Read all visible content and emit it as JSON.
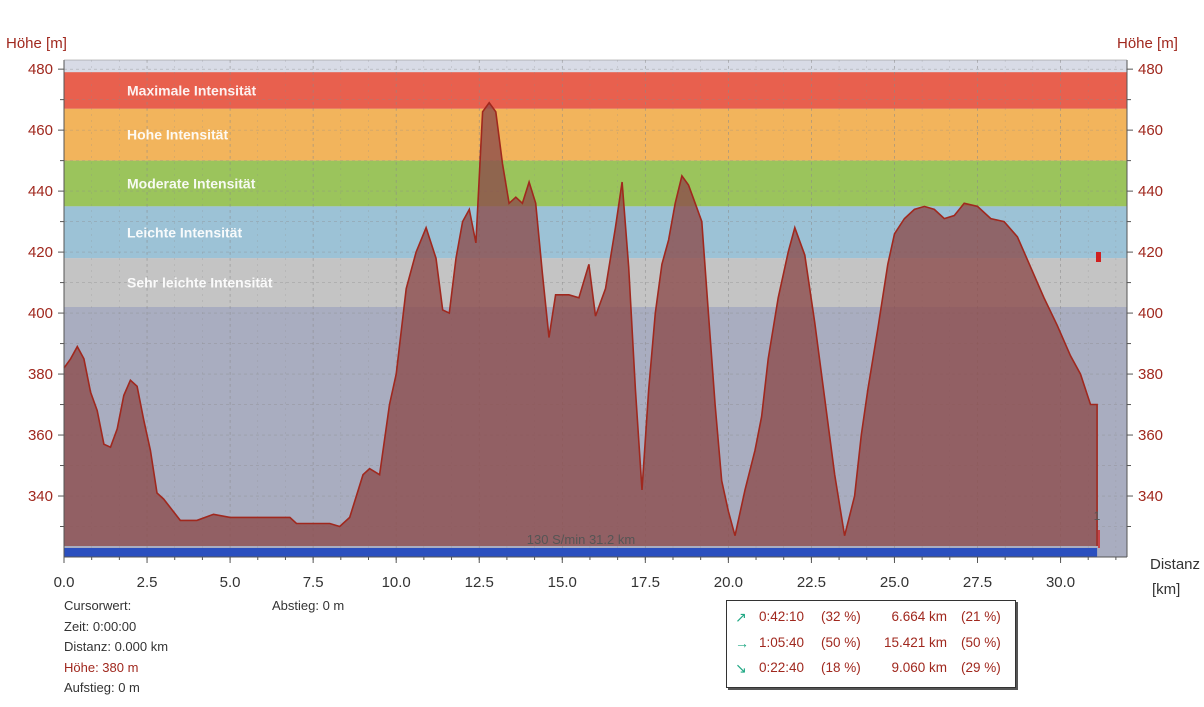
{
  "labels": {
    "y_left": "Höhe [m]",
    "y_right": "Höhe [m]",
    "x_title_line1": "Distanz",
    "x_title_line2": "[km]",
    "marker": "130 S/min 31.2 km",
    "marker_tick": "1"
  },
  "cursor": {
    "title": "Cursorwert:",
    "zeit": "Zeit: 0:00:00",
    "distanz": "Distanz: 0.000 km",
    "hoehe": "Höhe:  380 m",
    "aufstieg": "Aufstieg: 0 m",
    "abstieg": "Abstieg: 0 m"
  },
  "stats": [
    {
      "icon": "arrow-up-right-icon",
      "glyph": "↗",
      "time": "0:42:10",
      "pct": "(32 %)",
      "km": "6.664 km",
      "km_pct": "(21 %)"
    },
    {
      "icon": "arrow-right-icon",
      "glyph": "→",
      "time": "1:05:40",
      "pct": "(50 %)",
      "km": "15.421 km",
      "km_pct": "(50 %)"
    },
    {
      "icon": "arrow-down-right-icon",
      "glyph": "↘",
      "time": "0:22:40",
      "pct": "(18 %)",
      "km": "9.060 km",
      "km_pct": "(29 %)"
    }
  ],
  "colors": {
    "elevation_fill": "#8c4a4a",
    "elevation_line": "#a0281e",
    "bottom_bar": "#2a4fbf",
    "axis_text": "#a0281e"
  },
  "chart_data": {
    "type": "area",
    "xlabel": "Distanz [km]",
    "ylabel": "Höhe [m]",
    "xlim": [
      0,
      32
    ],
    "ylim": [
      320,
      483
    ],
    "x_ticks": [
      0.0,
      2.5,
      5.0,
      7.5,
      10.0,
      12.5,
      15.0,
      17.5,
      20.0,
      22.5,
      25.0,
      27.5,
      30.0
    ],
    "y_ticks": [
      340,
      360,
      380,
      400,
      420,
      440,
      460,
      480
    ],
    "grid": true,
    "zones": [
      {
        "name": "Maximale Intensität",
        "from": 467,
        "to": 479,
        "color": "#e8604e"
      },
      {
        "name": "Hohe Intensität",
        "from": 450,
        "to": 467,
        "color": "#f2b45c"
      },
      {
        "name": "Moderate Intensität",
        "from": 435,
        "to": 450,
        "color": "#9bc45c"
      },
      {
        "name": "Leichte Intensität",
        "from": 418,
        "to": 435,
        "color": "#9cc2d6"
      },
      {
        "name": "Sehr leichte Intensität",
        "from": 402,
        "to": 418,
        "color": "#c4c4c4"
      }
    ],
    "background_below_zones": "#a9adc0",
    "background_above_zones": "#d8dbe6",
    "series": [
      {
        "x": [
          0,
          0.2,
          0.4,
          0.6,
          0.8,
          1.0,
          1.2,
          1.4,
          1.6,
          1.8,
          2.0,
          2.2,
          2.4,
          2.6,
          2.8,
          3.0,
          3.5,
          4.0,
          4.5,
          5.0,
          5.5,
          6.0,
          6.5,
          6.8,
          7.0,
          7.5,
          8.0,
          8.3,
          8.6,
          9.0,
          9.2,
          9.5,
          9.8,
          10.0,
          10.3,
          10.6,
          10.9,
          11.2,
          11.4,
          11.6,
          11.8,
          12.0,
          12.2,
          12.4,
          12.6,
          12.8,
          13.0,
          13.2,
          13.4,
          13.6,
          13.8,
          14.0,
          14.2,
          14.4,
          14.6,
          14.8,
          15.0,
          15.2,
          15.5,
          15.8,
          16.0,
          16.3,
          16.6,
          16.8,
          17.0,
          17.2,
          17.4,
          17.6,
          17.8,
          18.0,
          18.2,
          18.4,
          18.6,
          18.8,
          19.0,
          19.2,
          19.4,
          19.6,
          19.8,
          20.0,
          20.2,
          20.5,
          20.8,
          21.0,
          21.2,
          21.5,
          21.8,
          22.0,
          22.3,
          22.6,
          22.9,
          23.2,
          23.5,
          23.8,
          24.0,
          24.2,
          24.5,
          24.8,
          25.0,
          25.3,
          25.6,
          25.9,
          26.2,
          26.5,
          26.8,
          27.1,
          27.5,
          27.9,
          28.3,
          28.7,
          29.1,
          29.5,
          29.9,
          30.3,
          30.6,
          30.9,
          31.1
        ],
        "y": [
          382,
          385,
          389,
          385,
          374,
          368,
          357,
          356,
          362,
          373,
          378,
          376,
          365,
          355,
          341,
          339,
          332,
          332,
          334,
          333,
          333,
          333,
          333,
          333,
          331,
          331,
          331,
          330,
          333,
          347,
          349,
          347,
          370,
          380,
          408,
          420,
          428,
          418,
          401,
          400,
          418,
          430,
          434,
          423,
          466,
          469,
          466,
          449,
          436,
          438,
          436,
          443,
          436,
          413,
          392,
          406,
          406,
          406,
          405,
          416,
          399,
          408,
          428,
          443,
          415,
          375,
          342,
          375,
          400,
          416,
          424,
          436,
          445,
          442,
          436,
          430,
          400,
          370,
          345,
          335,
          327,
          342,
          355,
          366,
          385,
          405,
          420,
          428,
          419,
          397,
          372,
          347,
          327,
          340,
          360,
          375,
          395,
          416,
          426,
          431,
          434,
          435,
          434,
          431,
          432,
          436,
          435,
          431,
          430,
          425,
          415,
          405,
          396,
          386,
          380,
          370,
          370
        ]
      }
    ]
  }
}
